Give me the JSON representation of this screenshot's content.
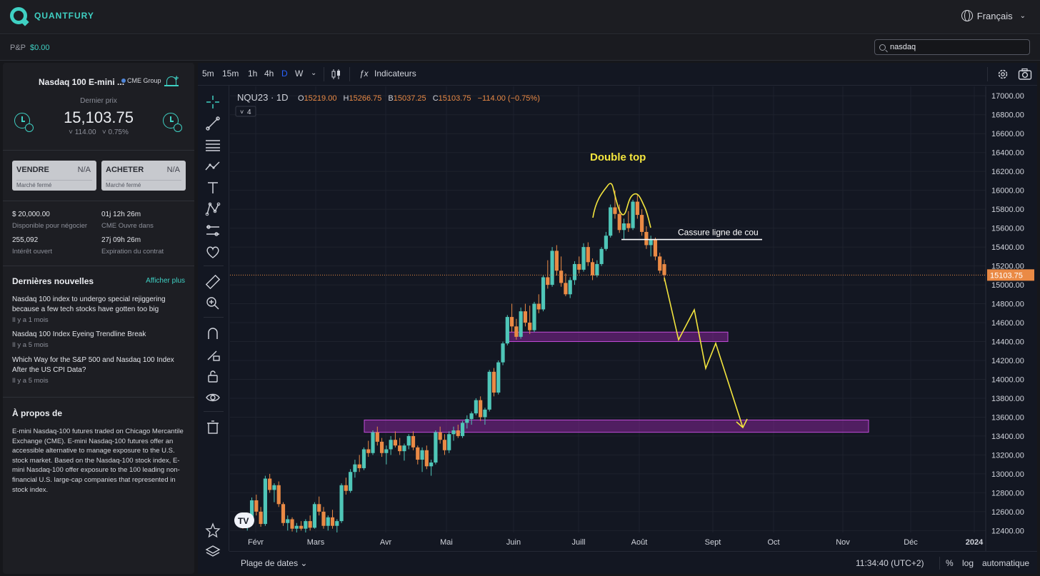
{
  "app": {
    "name": "QUANTFURY",
    "language": "Français"
  },
  "pnl": {
    "label": "P&P",
    "value": "$0.00"
  },
  "search": {
    "value": "nasdaq"
  },
  "instrument": {
    "name": "Nasdaq 100 E-mini ...",
    "exchange": "CME Group",
    "last_label": "Dernier prix",
    "price": "15,103.75",
    "change_abs": "˅ 114.00",
    "change_pct": "˅ 0.75%"
  },
  "trade": {
    "sell_label": "VENDRE",
    "sell_value": "N/A",
    "sell_status": "Marché fermé",
    "buy_label": "ACHETER",
    "buy_value": "N/A",
    "buy_status": "Marché fermé"
  },
  "stats": [
    {
      "value": "$ 20,000.00",
      "label": "Disponible pour négocier"
    },
    {
      "value": "01j 12h 26m",
      "label": "CME Ouvre dans"
    },
    {
      "value": "255,092",
      "label": "Intérêt ouvert"
    },
    {
      "value": "27j 09h 26m",
      "label": "Expiration du contrat"
    }
  ],
  "news": {
    "title": "Dernières nouvelles",
    "more": "Afficher plus",
    "items": [
      {
        "title": "Nasdaq 100 index to undergo special rejiggering because a few tech stocks have gotten too big",
        "date": "Il y a 1 mois"
      },
      {
        "title": "Nasdaq 100 Index Eyeing Trendline Break",
        "date": "Il y a 5 mois"
      },
      {
        "title": "Which Way for the S&P 500 and Nasdaq 100 Index After the US CPI Data?",
        "date": "Il y a 5 mois"
      }
    ]
  },
  "about": {
    "title": "À propos de",
    "text": "E-mini Nasdaq-100 futures traded on Chicago Mercantile Exchange (CME). E-mini Nasdaq-100 futures offer an accessible alternative to manage exposure to the U.S. stock market. Based on the Nasdaq-100 stock index, E-mini Nasdaq-100 offer exposure to the 100 leading non-financial U.S. large-cap companies that represented in stock index."
  },
  "toolbar": {
    "timeframes": [
      "5m",
      "15m",
      "1h",
      "4h",
      "D",
      "W"
    ],
    "active_timeframe": "D",
    "indicators": "Indicateurs"
  },
  "bottombar": {
    "date_range": "Plage de dates",
    "time": "11:34:40 (UTC+2)",
    "percent": "%",
    "log": "log",
    "auto": "automatique"
  },
  "colors": {
    "accent": "#3fd0c3",
    "up": "#4fc6b8",
    "down": "#ea8a45",
    "annotation": "#f3e53e",
    "zone": "#9c27b0"
  },
  "chart_data": {
    "type": "candlestick",
    "symbol": "NQU23 · 1D",
    "ohlc": {
      "o": "15219.00",
      "h": "15266.75",
      "b": "15037.25",
      "c": "15103.75",
      "chg": "−114.00 (−0.75%)"
    },
    "legend_labels": {
      "o": "O",
      "h": "H",
      "b": "B",
      "c": "C"
    },
    "studies_count": "4",
    "last_price_label": "15103.75",
    "last_price": 15103.75,
    "y_ticks": [
      17000,
      16800,
      16600,
      16400,
      16200,
      16000,
      15800,
      15600,
      15400,
      15200,
      15000,
      14800,
      14600,
      14400,
      14200,
      14000,
      13800,
      13600,
      13400,
      13200,
      13000,
      12800,
      12600,
      12400
    ],
    "x_ticks": [
      "Févr",
      "Mars",
      "Avr",
      "Mai",
      "Juin",
      "Juill",
      "Août",
      "Sept",
      "Oct",
      "Nov",
      "Déc",
      "2024"
    ],
    "ylim": [
      12380,
      17100
    ],
    "annotations": {
      "double_top": "Double top",
      "neckline": "Cassure ligne de cou",
      "neckline_level": 15480,
      "zones": [
        [
          14400,
          14500
        ],
        [
          13440,
          13570
        ]
      ]
    },
    "candles": [
      [
        12520,
        12560,
        12420,
        12450
      ],
      [
        12450,
        12520,
        12400,
        12480
      ],
      [
        12480,
        12750,
        12460,
        12720
      ],
      [
        12720,
        12780,
        12560,
        12600
      ],
      [
        12600,
        12650,
        12440,
        12470
      ],
      [
        12470,
        12980,
        12450,
        12950
      ],
      [
        12950,
        13000,
        12800,
        12830
      ],
      [
        12830,
        12900,
        12700,
        12880
      ],
      [
        12880,
        12920,
        12650,
        12680
      ],
      [
        12680,
        12700,
        12450,
        12480
      ],
      [
        12480,
        12560,
        12400,
        12520
      ],
      [
        12520,
        12540,
        12390,
        12420
      ],
      [
        12420,
        12480,
        12380,
        12450
      ],
      [
        12450,
        12500,
        12400,
        12420
      ],
      [
        12420,
        12520,
        12380,
        12500
      ],
      [
        12500,
        12560,
        12400,
        12430
      ],
      [
        12430,
        12700,
        12420,
        12680
      ],
      [
        12680,
        12760,
        12560,
        12600
      ],
      [
        12600,
        12650,
        12420,
        12450
      ],
      [
        12450,
        12560,
        12400,
        12540
      ],
      [
        12540,
        12620,
        12420,
        12450
      ],
      [
        12450,
        12520,
        12380,
        12500
      ],
      [
        12500,
        12900,
        12480,
        12880
      ],
      [
        12880,
        12960,
        12780,
        12820
      ],
      [
        12820,
        13050,
        12800,
        13020
      ],
      [
        13020,
        13150,
        12960,
        13100
      ],
      [
        13100,
        13200,
        13020,
        13060
      ],
      [
        13060,
        13280,
        13040,
        13260
      ],
      [
        13260,
        13350,
        13180,
        13220
      ],
      [
        13220,
        13460,
        13200,
        13440
      ],
      [
        13440,
        13500,
        13300,
        13340
      ],
      [
        13340,
        13380,
        13180,
        13220
      ],
      [
        13220,
        13300,
        13100,
        13260
      ],
      [
        13260,
        13400,
        13200,
        13360
      ],
      [
        13360,
        13450,
        13280,
        13300
      ],
      [
        13300,
        13380,
        13200,
        13240
      ],
      [
        13240,
        13320,
        13140,
        13300
      ],
      [
        13300,
        13420,
        13260,
        13400
      ],
      [
        13400,
        13450,
        13250,
        13280
      ],
      [
        13280,
        13300,
        13100,
        13150
      ],
      [
        13150,
        13280,
        13020,
        13250
      ],
      [
        13250,
        13300,
        13050,
        13080
      ],
      [
        13080,
        13150,
        12980,
        13120
      ],
      [
        13120,
        13460,
        13100,
        13440
      ],
      [
        13440,
        13500,
        13320,
        13360
      ],
      [
        13360,
        13420,
        13200,
        13250
      ],
      [
        13250,
        13450,
        13220,
        13420
      ],
      [
        13420,
        13500,
        13350,
        13460
      ],
      [
        13460,
        13520,
        13380,
        13400
      ],
      [
        13400,
        13560,
        13380,
        13540
      ],
      [
        13540,
        13620,
        13480,
        13580
      ],
      [
        13580,
        13660,
        13520,
        13640
      ],
      [
        13640,
        13800,
        13620,
        13780
      ],
      [
        13780,
        13820,
        13560,
        13600
      ],
      [
        13600,
        13700,
        13520,
        13680
      ],
      [
        13680,
        14100,
        13660,
        14080
      ],
      [
        14080,
        14120,
        13820,
        13860
      ],
      [
        13860,
        14200,
        13840,
        14180
      ],
      [
        14180,
        14400,
        14150,
        14380
      ],
      [
        14380,
        14680,
        14360,
        14660
      ],
      [
        14660,
        14800,
        14500,
        14560
      ],
      [
        14560,
        14640,
        14420,
        14450
      ],
      [
        14450,
        14760,
        14430,
        14720
      ],
      [
        14720,
        14800,
        14560,
        14600
      ],
      [
        14600,
        14780,
        14480,
        14520
      ],
      [
        14520,
        14820,
        14500,
        14800
      ],
      [
        14800,
        14900,
        14700,
        14740
      ],
      [
        14740,
        15100,
        14720,
        15080
      ],
      [
        15080,
        15260,
        14960,
        15000
      ],
      [
        15000,
        15400,
        14980,
        15360
      ],
      [
        15360,
        15420,
        15100,
        15150
      ],
      [
        15150,
        15300,
        14980,
        15020
      ],
      [
        15020,
        15120,
        14880,
        14900
      ],
      [
        14900,
        15080,
        14860,
        15050
      ],
      [
        15050,
        15250,
        15000,
        15220
      ],
      [
        15220,
        15300,
        15120,
        15160
      ],
      [
        15160,
        15440,
        15140,
        15400
      ],
      [
        15400,
        15450,
        15200,
        15240
      ],
      [
        15240,
        15280,
        15050,
        15100
      ],
      [
        15100,
        15260,
        15080,
        15220
      ],
      [
        15220,
        15400,
        15200,
        15380
      ],
      [
        15380,
        15560,
        15360,
        15520
      ],
      [
        15520,
        15850,
        15500,
        15820
      ],
      [
        15820,
        16000,
        15700,
        15750
      ],
      [
        15750,
        15850,
        15550,
        15580
      ],
      [
        15580,
        15700,
        15480,
        15650
      ],
      [
        15650,
        15780,
        15560,
        15600
      ],
      [
        15600,
        15900,
        15580,
        15880
      ],
      [
        15880,
        15950,
        15700,
        15740
      ],
      [
        15740,
        15800,
        15520,
        15560
      ],
      [
        15560,
        15620,
        15380,
        15420
      ],
      [
        15420,
        15520,
        15300,
        15480
      ],
      [
        15480,
        15500,
        15260,
        15300
      ],
      [
        15300,
        15340,
        15120,
        15150
      ],
      [
        15219,
        15266.75,
        15037.25,
        15103.75
      ]
    ]
  }
}
